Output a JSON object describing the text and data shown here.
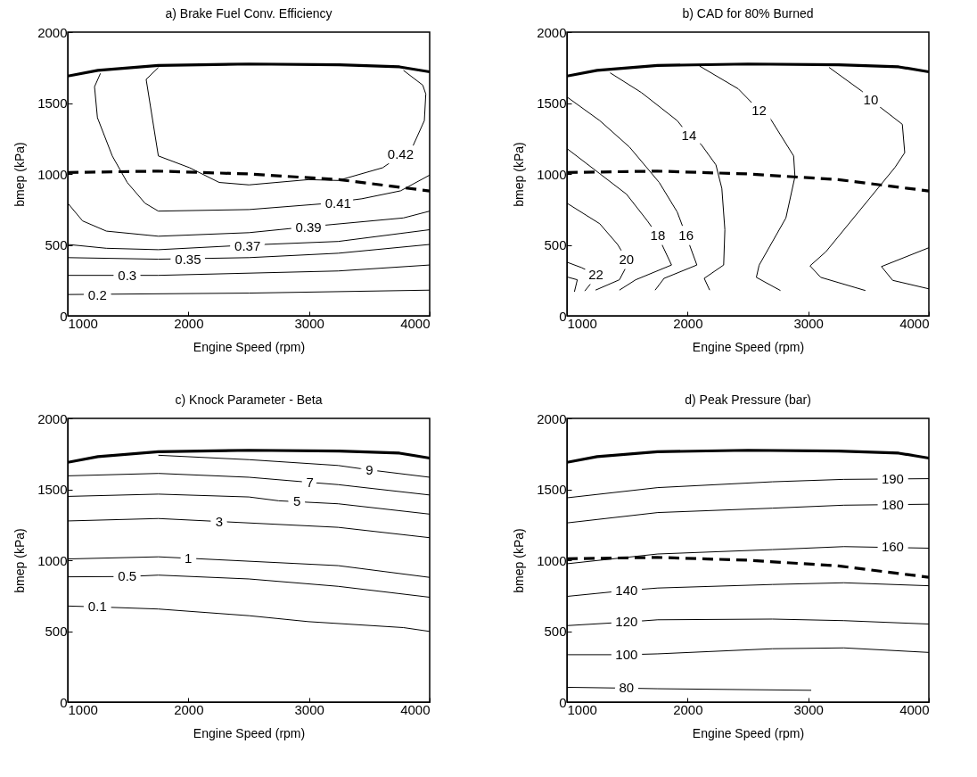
{
  "chart_data": [
    {
      "type": "line",
      "title": "a) Brake Fuel Conv. Efficiency",
      "xlabel": "Engine Speed (rpm)",
      "ylabel": "bmep (kPa)",
      "xlim": [
        1000,
        4000
      ],
      "xticks": [
        1000,
        2000,
        3000,
        4000
      ],
      "ylim": [
        0,
        2000
      ],
      "yticks": [
        0,
        500,
        1000,
        1500,
        2000
      ],
      "series": [
        {
          "color": "#000000",
          "line_style": "solid",
          "x": [
            1000,
            1250,
            1750,
            2500,
            3250,
            3750,
            4000
          ],
          "values": [
            1690,
            1730,
            1765,
            1775,
            1770,
            1755,
            1720
          ]
        },
        {
          "color": "#000000",
          "line_style": "dashed",
          "x": [
            1000,
            1750,
            2500,
            3250,
            4000
          ],
          "values": [
            1010,
            1020,
            1000,
            960,
            880
          ]
        },
        {
          "color": "#000000",
          "x": [
            1751,
            1650,
            1751,
            2010,
            2256,
            2502,
            2995,
            3241,
            3611,
            3857,
            3956,
            3968,
            3943,
            3783
          ],
          "values": [
            1750,
            1667,
            1127,
            1044,
            940,
            923,
            960,
            954,
            1044,
            1189,
            1376,
            1563,
            1626,
            1730
          ]
        },
        {
          "color": "#000000",
          "x": [
            1271,
            1222,
            1246,
            1369,
            1493,
            1640,
            1751,
            2502,
            3118,
            3438,
            3759,
            4000
          ],
          "values": [
            1709,
            1615,
            1397,
            1127,
            940,
            794,
            738,
            749,
            790,
            825,
            881,
            992
          ]
        },
        {
          "color": "#000000",
          "x": [
            1000,
            1123,
            1320,
            1751,
            2502,
            2995,
            3783,
            4000
          ],
          "values": [
            794,
            669,
            597,
            561,
            586,
            628,
            690,
            738
          ]
        },
        {
          "color": "#000000",
          "x": [
            1000,
            1320,
            1751,
            2502,
            3241,
            4000
          ],
          "values": [
            503,
            476,
            466,
            499,
            524,
            607
          ]
        },
        {
          "color": "#000000",
          "x": [
            1000,
            1751,
            2502,
            3241,
            4000
          ],
          "values": [
            410,
            399,
            410,
            441,
            503
          ]
        },
        {
          "color": "#000000",
          "x": [
            1000,
            1751,
            3241,
            4000
          ],
          "values": [
            285,
            285,
            316,
            358
          ]
        },
        {
          "color": "#000000",
          "x": [
            1000,
            2502,
            4000
          ],
          "values": [
            150,
            160,
            181
          ]
        }
      ],
      "annotations": [
        {
          "text": "0.42",
          "x": 3759,
          "y": 1137
        },
        {
          "text": "0.41",
          "x": 3241,
          "y": 794
        },
        {
          "text": "0.39",
          "x": 2995,
          "y": 622
        },
        {
          "text": "0.37",
          "x": 2490,
          "y": 493
        },
        {
          "text": "0.35",
          "x": 1997,
          "y": 399
        },
        {
          "text": "0.3",
          "x": 1493,
          "y": 281
        },
        {
          "text": "0.2",
          "x": 1246,
          "y": 146
        }
      ]
    },
    {
      "type": "line",
      "title": "b) CAD for 80% Burned",
      "xlabel": "Engine Speed (rpm)",
      "ylabel": "bmep (kPa)",
      "xlim": [
        1000,
        4000
      ],
      "xticks": [
        1000,
        2000,
        3000,
        4000
      ],
      "ylim": [
        0,
        2000
      ],
      "yticks": [
        0,
        500,
        1000,
        1500,
        2000
      ],
      "series": [
        {
          "color": "#000000",
          "line_style": "solid",
          "x": [
            1000,
            1250,
            1750,
            2500,
            3250,
            3750,
            4000
          ],
          "values": [
            1690,
            1730,
            1765,
            1775,
            1770,
            1755,
            1720
          ]
        },
        {
          "color": "#000000",
          "line_style": "dashed",
          "x": [
            1000,
            1750,
            2500,
            3250,
            4000
          ],
          "values": [
            1010,
            1020,
            1000,
            960,
            880
          ]
        },
        {
          "color": "#000000",
          "x": [
            3173,
            3444,
            3519,
            3780,
            3800,
            3719,
            3148,
            3015,
            3104,
            3474
          ],
          "values": [
            1751,
            1584,
            1522,
            1350,
            1150,
            1046,
            453,
            352,
            271,
            178
          ]
        },
        {
          "color": "#000000",
          "x": [
            4000,
            3607,
            3700,
            4000
          ],
          "values": [
            480,
            347,
            250,
            190
          ]
        },
        {
          "color": "#000000",
          "x": [
            2099,
            2420,
            2593,
            2681,
            2879,
            2890,
            2815,
            2593,
            2570,
            2770
          ],
          "values": [
            1761,
            1600,
            1449,
            1397,
            1127,
            981,
            690,
            357,
            271,
            178
          ]
        },
        {
          "color": "#000000",
          "x": [
            1358,
            1617,
            1914,
            2012,
            2111,
            2235,
            2284,
            2309,
            2299,
            2138,
            2183
          ],
          "values": [
            1713,
            1574,
            1376,
            1272,
            1210,
            1064,
            898,
            607,
            358,
            264,
            181
          ]
        },
        {
          "color": "#000000",
          "x": [
            1000,
            1272,
            1519,
            1765,
            1914,
            1988,
            2077,
            1805,
            1731
          ],
          "values": [
            1543,
            1376,
            1189,
            940,
            732,
            565,
            358,
            264,
            181
          ]
        },
        {
          "color": "#000000",
          "x": [
            1000,
            1272,
            1494,
            1667,
            1753,
            1867,
            1570,
            1435
          ],
          "values": [
            1179,
            1002,
            857,
            669,
            565,
            358,
            254,
            181
          ]
        },
        {
          "color": "#000000",
          "x": [
            1000,
            1272,
            1420,
            1494,
            1481,
            1435,
            1237
          ],
          "values": [
            794,
            649,
            503,
            399,
            328,
            254,
            181
          ]
        },
        {
          "color": "#000000",
          "x": [
            1000,
            1120,
            1240,
            1210,
            1148
          ],
          "values": [
            378,
            340,
            290,
            240,
            175
          ]
        },
        {
          "color": "#000000",
          "x": [
            1000,
            1086,
            1062
          ],
          "values": [
            274,
            254,
            170
          ]
        }
      ],
      "annotations": [
        {
          "text": "10",
          "x": 3519,
          "y": 1522
        },
        {
          "text": "12",
          "x": 2593,
          "y": 1449
        },
        {
          "text": "14",
          "x": 2012,
          "y": 1272
        },
        {
          "text": "16",
          "x": 1988,
          "y": 565
        },
        {
          "text": "18",
          "x": 1753,
          "y": 565
        },
        {
          "text": "20",
          "x": 1494,
          "y": 399
        },
        {
          "text": "22",
          "x": 1240,
          "y": 290
        }
      ]
    },
    {
      "type": "line",
      "title": "c) Knock Parameter - Beta",
      "xlabel": "Engine Speed (rpm)",
      "ylabel": "bmep (kPa)",
      "xlim": [
        1000,
        4000
      ],
      "xticks": [
        1000,
        2000,
        3000,
        4000
      ],
      "ylim": [
        0,
        2000
      ],
      "yticks": [
        0,
        500,
        1000,
        1500,
        2000
      ],
      "series": [
        {
          "color": "#000000",
          "line_style": "solid",
          "x": [
            1000,
            1250,
            1750,
            2500,
            3250,
            3750,
            4000
          ],
          "values": [
            1690,
            1730,
            1765,
            1775,
            1770,
            1755,
            1720
          ]
        },
        {
          "color": "#000000",
          "x": [
            1751,
            2502,
            3241,
            3500,
            4000
          ],
          "values": [
            1740,
            1709,
            1668,
            1637,
            1585
          ]
        },
        {
          "color": "#000000",
          "x": [
            1000,
            1751,
            2502,
            3007,
            3241,
            4000
          ],
          "values": [
            1595,
            1612,
            1585,
            1549,
            1533,
            1460
          ]
        },
        {
          "color": "#000000",
          "x": [
            1000,
            1751,
            2502,
            2749,
            3241,
            4000
          ],
          "values": [
            1450,
            1466,
            1446,
            1419,
            1398,
            1325
          ]
        },
        {
          "color": "#000000",
          "x": [
            1000,
            1751,
            2256,
            3241,
            4000
          ],
          "values": [
            1277,
            1294,
            1273,
            1232,
            1159
          ]
        },
        {
          "color": "#000000",
          "x": [
            1000,
            1751,
            1998,
            3241,
            4000
          ],
          "values": [
            1009,
            1024,
            1014,
            962,
            879
          ]
        },
        {
          "color": "#000000",
          "x": [
            1000,
            1493,
            1751,
            2502,
            3241,
            4000
          ],
          "values": [
            883,
            885,
            895,
            868,
            816,
            739
          ]
        },
        {
          "color": "#000000",
          "x": [
            1000,
            1246,
            1751,
            2502,
            2995,
            3783,
            4000
          ],
          "values": [
            677,
            671,
            656,
            609,
            567,
            525,
            498
          ]
        }
      ],
      "annotations": [
        {
          "text": "9",
          "x": 3500,
          "y": 1637
        },
        {
          "text": "7",
          "x": 3007,
          "y": 1549
        },
        {
          "text": "5",
          "x": 2900,
          "y": 1413
        },
        {
          "text": "3",
          "x": 2256,
          "y": 1273
        },
        {
          "text": "1",
          "x": 1998,
          "y": 1014
        },
        {
          "text": "0.5",
          "x": 1493,
          "y": 885
        },
        {
          "text": "0.1",
          "x": 1246,
          "y": 671
        }
      ]
    },
    {
      "type": "line",
      "title": "d) Peak Pressure (bar)",
      "xlabel": "Engine Speed (rpm)",
      "ylabel": "bmep (kPa)",
      "xlim": [
        1000,
        4000
      ],
      "xticks": [
        1000,
        2000,
        3000,
        4000
      ],
      "ylim": [
        0,
        2000
      ],
      "yticks": [
        0,
        500,
        1000,
        1500,
        2000
      ],
      "series": [
        {
          "color": "#000000",
          "line_style": "solid",
          "x": [
            1000,
            1250,
            1750,
            2500,
            3250,
            3750,
            4000
          ],
          "values": [
            1690,
            1730,
            1765,
            1775,
            1770,
            1755,
            1720
          ]
        },
        {
          "color": "#000000",
          "line_style": "dashed",
          "x": [
            1000,
            1750,
            2500,
            3250,
            4000
          ],
          "values": [
            1010,
            1020,
            1000,
            960,
            880
          ]
        },
        {
          "color": "#000000",
          "x": [
            1000,
            1753,
            2704,
            3296,
            4000
          ],
          "values": [
            1440,
            1512,
            1553,
            1570,
            1575
          ]
        },
        {
          "color": "#000000",
          "x": [
            1000,
            1753,
            2704,
            3296,
            4000
          ],
          "values": [
            1263,
            1336,
            1367,
            1388,
            1395
          ]
        },
        {
          "color": "#000000",
          "x": [
            1000,
            1753,
            2704,
            3296,
            4000
          ],
          "values": [
            975,
            1044,
            1075,
            1096,
            1085
          ]
        },
        {
          "color": "#000000",
          "x": [
            1000,
            1494,
            1753,
            2704,
            3296,
            4000
          ],
          "values": [
            745,
            787,
            804,
            829,
            841,
            820
          ]
        },
        {
          "color": "#000000",
          "x": [
            1000,
            1494,
            1753,
            2704,
            3296,
            4000
          ],
          "values": [
            539,
            564,
            580,
            585,
            574,
            550
          ]
        },
        {
          "color": "#000000",
          "x": [
            1000,
            1494,
            1753,
            2704,
            3296,
            4000
          ],
          "values": [
            334,
            334,
            340,
            376,
            382,
            350
          ]
        },
        {
          "color": "#000000",
          "x": [
            1000,
            1494,
            1753,
            3025
          ],
          "values": [
            104,
            98,
            94,
            83
          ]
        }
      ],
      "annotations": [
        {
          "text": "190",
          "x": 3700,
          "y": 1572
        },
        {
          "text": "180",
          "x": 3700,
          "y": 1393
        },
        {
          "text": "160",
          "x": 3700,
          "y": 1092
        },
        {
          "text": "140",
          "x": 1494,
          "y": 787
        },
        {
          "text": "120",
          "x": 1494,
          "y": 564
        },
        {
          "text": "100",
          "x": 1494,
          "y": 334
        },
        {
          "text": "80",
          "x": 1494,
          "y": 98
        }
      ]
    }
  ]
}
